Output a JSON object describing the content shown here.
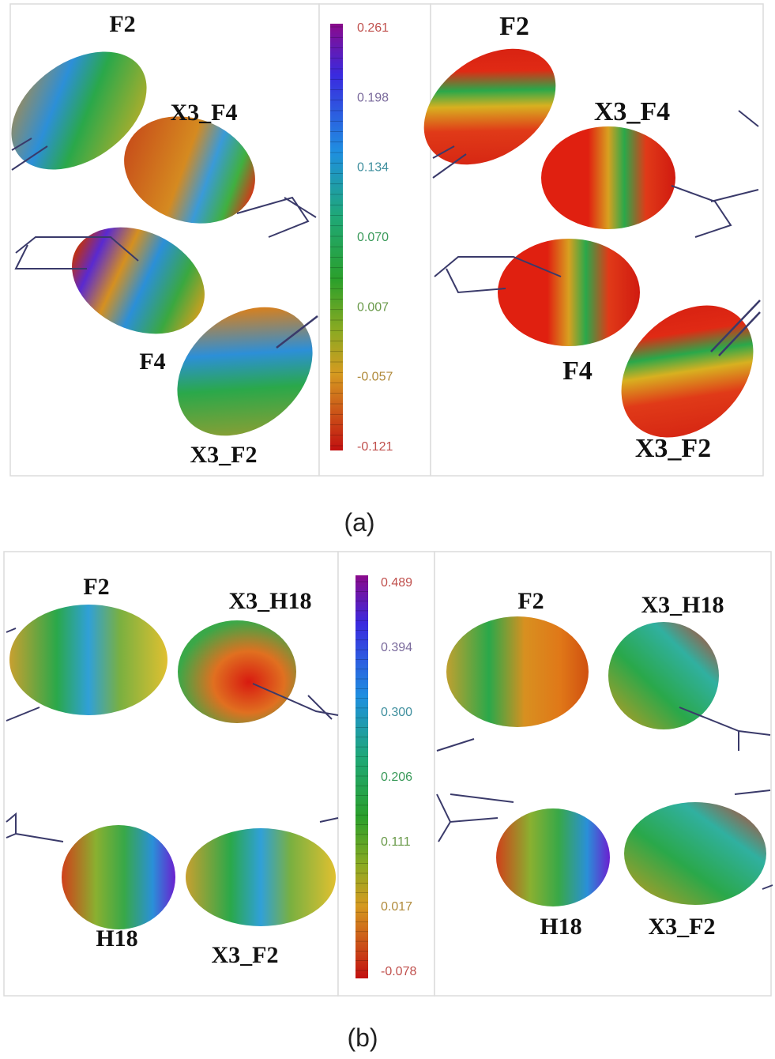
{
  "panel_a": {
    "caption": "(a)",
    "left_labels": [
      "F2",
      "X3_F4",
      "F4",
      "X3_F2"
    ],
    "right_labels": [
      "F2",
      "X3_F4",
      "F4",
      "X3_F2"
    ],
    "colorbar": {
      "ticks": [
        "0.261",
        "0.198",
        "0.134",
        "0.070",
        "0.007",
        "-0.057",
        "-0.121"
      ],
      "tick_colors": [
        "#c0504d",
        "#7a6a9c",
        "#3f8f9e",
        "#3a9a5a",
        "#6a9a4a",
        "#b08a3a",
        "#c0504d"
      ]
    }
  },
  "panel_b": {
    "caption": "(b)",
    "left_labels": [
      "F2",
      "X3_H18",
      "H18",
      "X3_F2"
    ],
    "right_labels": [
      "F2",
      "X3_H18",
      "H18",
      "X3_F2"
    ],
    "colorbar": {
      "ticks": [
        "0.489",
        "0.394",
        "0.300",
        "0.206",
        "0.111",
        "0.017",
        "-0.078"
      ],
      "tick_colors": [
        "#c0504d",
        "#7a6a9c",
        "#3f8f9e",
        "#3a9a5a",
        "#6a9a4a",
        "#b08a3a",
        "#c0504d"
      ]
    }
  }
}
